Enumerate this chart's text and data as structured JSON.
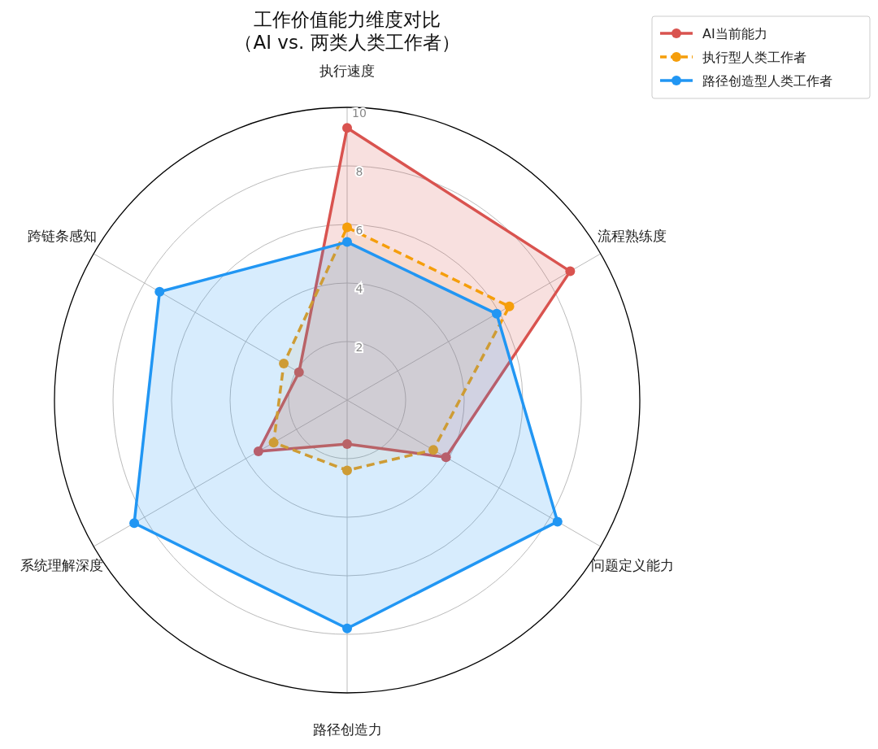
{
  "chart_data": {
    "type": "radar",
    "title": "工作价值能力维度对比",
    "subtitle": "（AI vs. 两类人类工作者）",
    "categories": [
      "执行速度",
      "流程熟练度",
      "问题定义能力",
      "路径创造力",
      "系统理解深度",
      "跨链条感知"
    ],
    "ylim": [
      0,
      10
    ],
    "yticks": [
      2,
      4,
      6,
      8,
      10
    ],
    "grid": true,
    "legend": "top right",
    "marker": "circle",
    "series": [
      {
        "name": "AI当前能力",
        "color": "#d9534f",
        "values": [
          9.3,
          8.8,
          3.9,
          1.5,
          3.5,
          1.9
        ],
        "line_style": "solid"
      },
      {
        "name": "执行型人类工作者",
        "color": "#f59e0b",
        "values": [
          5.9,
          6.4,
          3.4,
          2.4,
          2.9,
          2.5
        ],
        "line_style": "dashed"
      },
      {
        "name": "路径创造型人类工作者",
        "color": "#2196f3",
        "values": [
          5.4,
          5.9,
          8.3,
          7.8,
          8.4,
          7.4
        ],
        "line_style": "solid"
      }
    ]
  }
}
